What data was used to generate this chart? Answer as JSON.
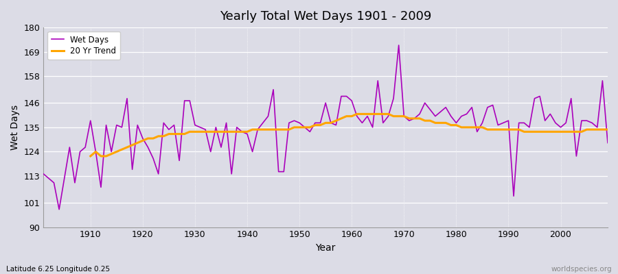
{
  "title": "Yearly Total Wet Days 1901 - 2009",
  "xlabel": "Year",
  "ylabel": "Wet Days",
  "subtitle": "Latitude 6.25 Longitude 0.25",
  "watermark": "worldspecies.org",
  "ylim": [
    90,
    180
  ],
  "yticks": [
    90,
    101,
    113,
    124,
    135,
    146,
    158,
    169,
    180
  ],
  "wet_days_color": "#aa00bb",
  "trend_color": "#FFA500",
  "plot_bg_color": "#dcdce6",
  "fig_bg_color": "#dcdce6",
  "years": [
    1901,
    1902,
    1903,
    1904,
    1905,
    1906,
    1907,
    1908,
    1909,
    1910,
    1911,
    1912,
    1913,
    1914,
    1915,
    1916,
    1917,
    1918,
    1919,
    1920,
    1921,
    1922,
    1923,
    1924,
    1925,
    1926,
    1927,
    1928,
    1929,
    1930,
    1931,
    1932,
    1933,
    1934,
    1935,
    1936,
    1937,
    1938,
    1939,
    1940,
    1941,
    1942,
    1943,
    1944,
    1945,
    1946,
    1947,
    1948,
    1949,
    1950,
    1951,
    1952,
    1953,
    1954,
    1955,
    1956,
    1957,
    1958,
    1959,
    1960,
    1961,
    1962,
    1963,
    1964,
    1965,
    1966,
    1967,
    1968,
    1969,
    1970,
    1971,
    1972,
    1973,
    1974,
    1975,
    1976,
    1977,
    1978,
    1979,
    1980,
    1981,
    1982,
    1983,
    1984,
    1985,
    1986,
    1987,
    1988,
    1989,
    1990,
    1991,
    1992,
    1993,
    1994,
    1995,
    1996,
    1997,
    1998,
    1999,
    2000,
    2001,
    2002,
    2003,
    2004,
    2005,
    2006,
    2007,
    2008,
    2009
  ],
  "wet_days": [
    114,
    112,
    110,
    98,
    112,
    126,
    110,
    124,
    126,
    138,
    124,
    108,
    136,
    124,
    136,
    135,
    148,
    116,
    136,
    130,
    126,
    121,
    114,
    137,
    134,
    136,
    120,
    147,
    147,
    136,
    135,
    134,
    124,
    135,
    126,
    137,
    114,
    135,
    133,
    132,
    124,
    134,
    137,
    140,
    152,
    115,
    115,
    137,
    138,
    137,
    135,
    133,
    137,
    137,
    146,
    137,
    136,
    149,
    149,
    147,
    140,
    137,
    140,
    135,
    156,
    137,
    140,
    148,
    172,
    140,
    138,
    139,
    141,
    146,
    143,
    140,
    142,
    144,
    140,
    137,
    140,
    141,
    144,
    133,
    137,
    144,
    145,
    136,
    137,
    138,
    104,
    137,
    137,
    135,
    148,
    149,
    138,
    141,
    137,
    135,
    137,
    148,
    122,
    138,
    138,
    137,
    135,
    156,
    128
  ],
  "trend_years": [
    1910,
    1911,
    1912,
    1913,
    1914,
    1915,
    1916,
    1917,
    1918,
    1919,
    1920,
    1921,
    1922,
    1923,
    1924,
    1925,
    1926,
    1927,
    1928,
    1929,
    1930,
    1931,
    1932,
    1933,
    1934,
    1935,
    1936,
    1937,
    1938,
    1939,
    1940,
    1941,
    1942,
    1943,
    1944,
    1945,
    1946,
    1947,
    1948,
    1949,
    1950,
    1951,
    1952,
    1953,
    1954,
    1955,
    1956,
    1957,
    1958,
    1959,
    1960,
    1961,
    1962,
    1963,
    1964,
    1965,
    1966,
    1967,
    1968,
    1969,
    1970,
    1971,
    1972,
    1973,
    1974,
    1975,
    1976,
    1977,
    1978,
    1979,
    1980,
    1981,
    1982,
    1983,
    1984,
    1985,
    1986,
    1987,
    1988,
    1989,
    1990,
    1991,
    1992,
    1993,
    1994,
    1995,
    1996,
    1997,
    1998,
    1999,
    2000,
    2001,
    2002,
    2003,
    2004,
    2005,
    2006,
    2007,
    2008,
    2009
  ],
  "trend_values": [
    122,
    124,
    122,
    122,
    123,
    124,
    125,
    126,
    127,
    128,
    129,
    130,
    130,
    131,
    131,
    132,
    132,
    132,
    132,
    133,
    133,
    133,
    133,
    133,
    133,
    133,
    133,
    133,
    133,
    133,
    133,
    134,
    134,
    134,
    134,
    134,
    134,
    134,
    134,
    135,
    135,
    135,
    135,
    136,
    136,
    137,
    137,
    138,
    139,
    140,
    140,
    141,
    141,
    141,
    141,
    141,
    141,
    141,
    140,
    140,
    140,
    139,
    139,
    139,
    138,
    138,
    137,
    137,
    137,
    136,
    136,
    135,
    135,
    135,
    135,
    135,
    134,
    134,
    134,
    134,
    134,
    134,
    134,
    133,
    133,
    133,
    133,
    133,
    133,
    133,
    133,
    133,
    133,
    133,
    133,
    134,
    134,
    134,
    134,
    134
  ]
}
